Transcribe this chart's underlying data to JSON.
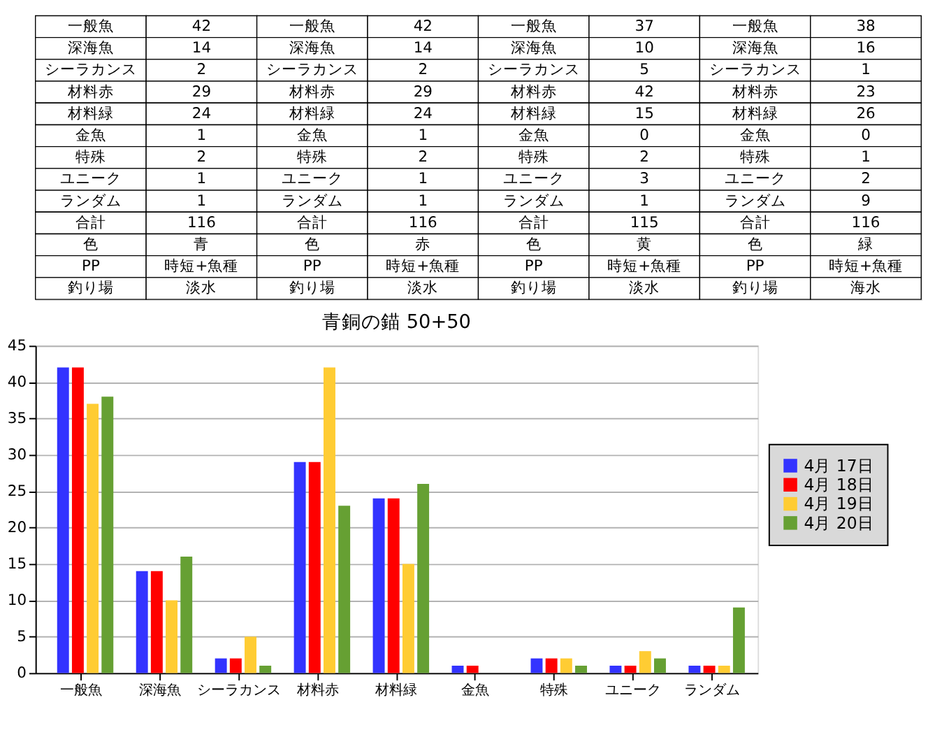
{
  "chart_data": {
    "type": "bar",
    "title": "青銅の錨 50+50",
    "categories": [
      "一般魚",
      "深海魚",
      "シーラカンス",
      "材料赤",
      "材料緑",
      "金魚",
      "特殊",
      "ユニーク",
      "ランダム"
    ],
    "series": [
      {
        "name": "4月 17日",
        "color": "#3333ff",
        "values": [
          42,
          14,
          2,
          29,
          24,
          1,
          2,
          1,
          1
        ]
      },
      {
        "name": "4月 18日",
        "color": "#ff0000",
        "values": [
          42,
          14,
          2,
          29,
          24,
          1,
          2,
          1,
          1
        ]
      },
      {
        "name": "4月 19日",
        "color": "#ffcc33",
        "values": [
          37,
          10,
          5,
          42,
          15,
          0,
          2,
          3,
          1
        ]
      },
      {
        "name": "4月 20日",
        "color": "#66a033",
        "values": [
          38,
          16,
          1,
          23,
          26,
          0,
          1,
          2,
          9
        ]
      }
    ],
    "annotations": [
      "一般魚",
      "42",
      "一般魚",
      "42",
      "一般魚",
      "37",
      "一般魚",
      "38",
      "深海魚",
      "14",
      "深海魚",
      "14",
      "深海魚",
      "10",
      "深海魚",
      "16",
      "シーラカンス",
      "2",
      "シーラカンス",
      "2",
      "シーラカンス",
      "5",
      "シーラカンス",
      "1",
      "材料赤",
      "29",
      "材料赤",
      "29",
      "材料赤",
      "42",
      "材料赤",
      "23",
      "材料緑",
      "24",
      "材料緑",
      "24",
      "材料緑",
      "15",
      "材料緑",
      "26",
      "金魚",
      "1",
      "金魚",
      "1",
      "金魚",
      "0",
      "金魚",
      "0",
      "特殊",
      "2",
      "特殊",
      "2",
      "特殊",
      "2",
      "特殊",
      "1",
      "ユニーク",
      "1",
      "ユニーク",
      "1",
      "ユニーク",
      "3",
      "ユニーク",
      "2",
      "ランダム",
      "1",
      "ランダム",
      "1",
      "ランダム",
      "1",
      "ランダム",
      "9",
      "合計",
      "116",
      "合計",
      "116",
      "合計",
      "115",
      "合計",
      "116",
      "色",
      "青",
      "色",
      "赤",
      "色",
      "黄",
      "色",
      "緑",
      "PP",
      "時短+魚種",
      "PP",
      "時短+魚種",
      "PP",
      "時短+魚種",
      "PP",
      "時短+魚種",
      "釣り場",
      "淡水",
      "釣り場",
      "淡水",
      "釣り場",
      "淡水",
      "釣り場",
      "海水"
    ],
    "ylim": [
      0,
      45
    ],
    "yticks": [
      0,
      5,
      10,
      15,
      20,
      25,
      30,
      35,
      40,
      45
    ],
    "grid": "y",
    "legend": "right"
  }
}
